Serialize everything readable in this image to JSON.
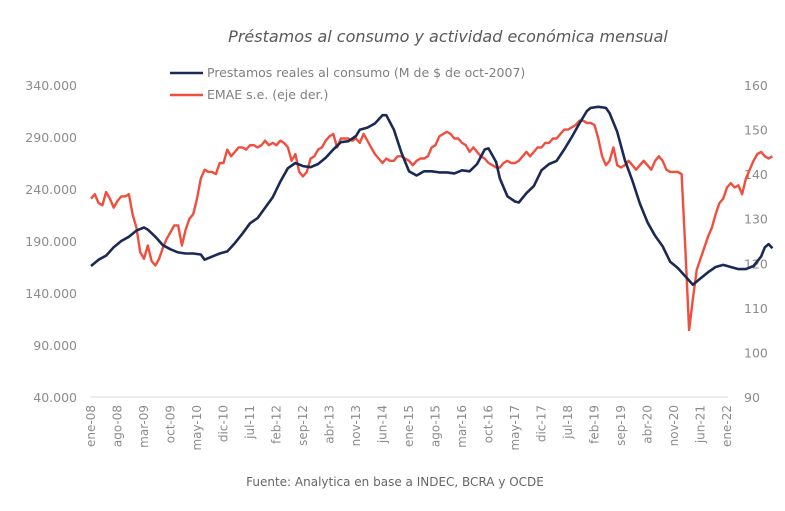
{
  "chart_data": {
    "type": "line",
    "title": "Préstamos al consumo y actividad económica mensual",
    "source": "Fuente: Analytica en base a INDEC, BCRA y OCDE",
    "legend": {
      "placement": "top",
      "entries": [
        {
          "name": "Prestamos reales al consumo (M de $ de oct-2007)",
          "color": "#1b2a55"
        },
        {
          "name": "EMAE s.e. (eje der.)",
          "color": "#f04e3e"
        }
      ]
    },
    "x_tick_labels": [
      "ene-08",
      "ago-08",
      "mar-09",
      "oct-09",
      "may-10",
      "dic-10",
      "jul-11",
      "feb-12",
      "sep-12",
      "abr-13",
      "nov-13",
      "jun-14",
      "ene-15",
      "ago-15",
      "mar-16",
      "oct-16",
      "may-17",
      "dic-17",
      "jul-18",
      "feb-19",
      "sep-19",
      "abr-20",
      "nov-20",
      "jun-21",
      "ene-22"
    ],
    "y_left": {
      "ylim": [
        40000,
        340000
      ],
      "ticks": [
        "40.000",
        "90.000",
        "140.000",
        "190.000",
        "240.000",
        "290.000",
        "340.000"
      ],
      "tick_values": [
        40000,
        90000,
        140000,
        190000,
        240000,
        290000,
        340000
      ]
    },
    "y_right": {
      "ylim": [
        90,
        160
      ],
      "ticks": [
        "90",
        "100",
        "110",
        "120",
        "130",
        "140",
        "150",
        "160"
      ],
      "tick_values": [
        90,
        100,
        110,
        120,
        130,
        140,
        150,
        160
      ]
    },
    "grid": false,
    "x_start": "ene-08",
    "x_unit": "month",
    "series": [
      {
        "name": "Prestamos reales al consumo (M de $ de oct-2007)",
        "axis": "left",
        "color": "#1b2a55",
        "points": [
          [
            0,
            166000
          ],
          [
            2,
            172000
          ],
          [
            4,
            176000
          ],
          [
            6,
            184000
          ],
          [
            8,
            190000
          ],
          [
            10,
            194000
          ],
          [
            12,
            200000
          ],
          [
            14,
            203000
          ],
          [
            15,
            201000
          ],
          [
            17,
            194000
          ],
          [
            19,
            186000
          ],
          [
            21,
            182000
          ],
          [
            23,
            179000
          ],
          [
            25,
            178000
          ],
          [
            27,
            178000
          ],
          [
            29,
            177000
          ],
          [
            30,
            172000
          ],
          [
            32,
            175000
          ],
          [
            34,
            178000
          ],
          [
            36,
            180000
          ],
          [
            38,
            188000
          ],
          [
            40,
            197000
          ],
          [
            42,
            207000
          ],
          [
            44,
            212000
          ],
          [
            46,
            222000
          ],
          [
            48,
            232000
          ],
          [
            50,
            247000
          ],
          [
            52,
            260000
          ],
          [
            54,
            265000
          ],
          [
            56,
            262000
          ],
          [
            58,
            261000
          ],
          [
            60,
            264000
          ],
          [
            62,
            270000
          ],
          [
            64,
            278000
          ],
          [
            66,
            285000
          ],
          [
            68,
            286000
          ],
          [
            70,
            291000
          ],
          [
            71,
            297000
          ],
          [
            73,
            299000
          ],
          [
            75,
            303000
          ],
          [
            77,
            311000
          ],
          [
            78,
            311000
          ],
          [
            80,
            297000
          ],
          [
            82,
            275000
          ],
          [
            84,
            257000
          ],
          [
            86,
            253000
          ],
          [
            88,
            257000
          ],
          [
            90,
            257000
          ],
          [
            92,
            256000
          ],
          [
            94,
            256000
          ],
          [
            96,
            255000
          ],
          [
            98,
            258000
          ],
          [
            100,
            257000
          ],
          [
            102,
            264000
          ],
          [
            104,
            278000
          ],
          [
            105,
            279000
          ],
          [
            107,
            266000
          ],
          [
            108,
            250000
          ],
          [
            110,
            233000
          ],
          [
            112,
            228000
          ],
          [
            113,
            227000
          ],
          [
            115,
            236000
          ],
          [
            117,
            243000
          ],
          [
            119,
            258000
          ],
          [
            121,
            264000
          ],
          [
            123,
            267000
          ],
          [
            125,
            278000
          ],
          [
            127,
            290000
          ],
          [
            129,
            303000
          ],
          [
            131,
            315000
          ],
          [
            132,
            318000
          ],
          [
            134,
            319000
          ],
          [
            136,
            318000
          ],
          [
            137,
            313000
          ],
          [
            139,
            295000
          ],
          [
            141,
            268000
          ],
          [
            143,
            248000
          ],
          [
            145,
            226000
          ],
          [
            147,
            208000
          ],
          [
            149,
            195000
          ],
          [
            151,
            185000
          ],
          [
            153,
            170000
          ],
          [
            155,
            164000
          ],
          [
            156,
            160000
          ],
          [
            158,
            152000
          ],
          [
            159,
            148000
          ],
          [
            161,
            154000
          ],
          [
            163,
            160000
          ],
          [
            165,
            165000
          ],
          [
            167,
            167000
          ],
          [
            169,
            165000
          ],
          [
            171,
            163000
          ],
          [
            173,
            163000
          ],
          [
            175,
            166000
          ],
          [
            177,
            175000
          ],
          [
            178,
            184000
          ],
          [
            179,
            187000
          ],
          [
            180,
            183000
          ]
        ]
      },
      {
        "name": "EMAE s.e. (eje der.)",
        "axis": "right",
        "color": "#f04e3e",
        "points": [
          [
            0,
            134.5
          ],
          [
            1,
            135.5
          ],
          [
            2,
            133.5
          ],
          [
            3,
            133
          ],
          [
            4,
            136
          ],
          [
            5,
            134.5
          ],
          [
            6,
            132.5
          ],
          [
            7,
            134
          ],
          [
            8,
            135
          ],
          [
            9,
            135
          ],
          [
            10,
            135.5
          ],
          [
            11,
            131
          ],
          [
            12,
            128
          ],
          [
            13,
            122.5
          ],
          [
            14,
            121
          ],
          [
            15,
            124
          ],
          [
            16,
            120.5
          ],
          [
            17,
            119.5
          ],
          [
            18,
            121
          ],
          [
            19,
            123.5
          ],
          [
            20,
            125.5
          ],
          [
            21,
            127
          ],
          [
            22,
            128.5
          ],
          [
            23,
            128.5
          ],
          [
            24,
            124
          ],
          [
            25,
            127.5
          ],
          [
            26,
            130
          ],
          [
            27,
            131
          ],
          [
            28,
            134.5
          ],
          [
            29,
            139
          ],
          [
            30,
            141
          ],
          [
            31,
            140.5
          ],
          [
            32,
            140.5
          ],
          [
            33,
            140
          ],
          [
            34,
            142.5
          ],
          [
            35,
            142.5
          ],
          [
            36,
            145.5
          ],
          [
            37,
            144
          ],
          [
            38,
            145
          ],
          [
            39,
            146
          ],
          [
            40,
            146
          ],
          [
            41,
            145.5
          ],
          [
            42,
            146.5
          ],
          [
            43,
            146.5
          ],
          [
            44,
            146
          ],
          [
            45,
            146.5
          ],
          [
            46,
            147.5
          ],
          [
            47,
            146.5
          ],
          [
            48,
            147
          ],
          [
            49,
            146.5
          ],
          [
            50,
            147.5
          ],
          [
            51,
            147
          ],
          [
            52,
            146
          ],
          [
            53,
            143
          ],
          [
            54,
            144.5
          ],
          [
            55,
            140.5
          ],
          [
            56,
            139.5
          ],
          [
            57,
            140.5
          ],
          [
            58,
            143.5
          ],
          [
            59,
            144
          ],
          [
            60,
            145.5
          ],
          [
            61,
            146
          ],
          [
            62,
            147.5
          ],
          [
            63,
            148.5
          ],
          [
            64,
            149
          ],
          [
            65,
            146
          ],
          [
            66,
            148
          ],
          [
            67,
            148
          ],
          [
            68,
            148
          ],
          [
            69,
            147.5
          ],
          [
            70,
            148
          ],
          [
            71,
            147
          ],
          [
            72,
            149
          ],
          [
            73,
            147.5
          ],
          [
            74,
            146
          ],
          [
            75,
            144.5
          ],
          [
            76,
            143.5
          ],
          [
            77,
            142.5
          ],
          [
            78,
            143.5
          ],
          [
            79,
            143
          ],
          [
            80,
            143
          ],
          [
            81,
            144
          ],
          [
            82,
            144
          ],
          [
            83,
            143.5
          ],
          [
            84,
            143
          ],
          [
            85,
            142
          ],
          [
            86,
            143
          ],
          [
            87,
            143.5
          ],
          [
            88,
            143.5
          ],
          [
            89,
            144
          ],
          [
            90,
            146
          ],
          [
            91,
            146.5
          ],
          [
            92,
            148.5
          ],
          [
            93,
            149
          ],
          [
            94,
            149.5
          ],
          [
            95,
            149
          ],
          [
            96,
            148
          ],
          [
            97,
            148
          ],
          [
            98,
            147
          ],
          [
            99,
            146.5
          ],
          [
            100,
            145
          ],
          [
            101,
            146
          ],
          [
            102,
            145
          ],
          [
            103,
            144
          ],
          [
            104,
            143.5
          ],
          [
            105,
            142.5
          ],
          [
            106,
            142
          ],
          [
            107,
            141.5
          ],
          [
            108,
            141.5
          ],
          [
            109,
            142.5
          ],
          [
            110,
            143
          ],
          [
            111,
            142.5
          ],
          [
            112,
            142.5
          ],
          [
            113,
            143
          ],
          [
            114,
            144
          ],
          [
            115,
            145
          ],
          [
            116,
            144
          ],
          [
            117,
            145
          ],
          [
            118,
            146
          ],
          [
            119,
            146
          ],
          [
            120,
            147
          ],
          [
            121,
            147
          ],
          [
            122,
            148
          ],
          [
            123,
            148
          ],
          [
            124,
            149
          ],
          [
            125,
            150
          ],
          [
            126,
            150
          ],
          [
            127,
            150.5
          ],
          [
            128,
            151
          ],
          [
            129,
            152
          ],
          [
            130,
            152
          ],
          [
            131,
            151.5
          ],
          [
            132,
            151.5
          ],
          [
            133,
            151
          ],
          [
            134,
            148
          ],
          [
            135,
            144
          ],
          [
            136,
            142
          ],
          [
            137,
            143
          ],
          [
            138,
            146
          ],
          [
            139,
            142
          ],
          [
            140,
            141.5
          ],
          [
            141,
            142
          ],
          [
            142,
            143
          ],
          [
            143,
            142
          ],
          [
            144,
            141
          ],
          [
            145,
            142
          ],
          [
            146,
            143
          ],
          [
            147,
            142
          ],
          [
            148,
            141
          ],
          [
            149,
            143
          ],
          [
            150,
            144
          ],
          [
            151,
            143
          ],
          [
            152,
            141
          ],
          [
            153,
            140.5
          ],
          [
            154,
            140.5
          ],
          [
            155,
            140.5
          ],
          [
            156,
            140
          ],
          [
            157,
            123
          ],
          [
            158,
            105
          ],
          [
            159,
            112
          ],
          [
            160,
            118.5
          ],
          [
            161,
            121
          ],
          [
            162,
            123.5
          ],
          [
            163,
            126
          ],
          [
            164,
            128
          ],
          [
            165,
            131
          ],
          [
            166,
            133.5
          ],
          [
            167,
            134.5
          ],
          [
            168,
            137
          ],
          [
            169,
            138
          ],
          [
            170,
            137
          ],
          [
            171,
            137.5
          ],
          [
            172,
            135.5
          ],
          [
            173,
            139
          ],
          [
            174,
            141
          ],
          [
            175,
            143
          ],
          [
            176,
            144.5
          ],
          [
            177,
            145
          ],
          [
            178,
            144
          ],
          [
            179,
            143.5
          ],
          [
            180,
            144
          ]
        ]
      }
    ]
  }
}
